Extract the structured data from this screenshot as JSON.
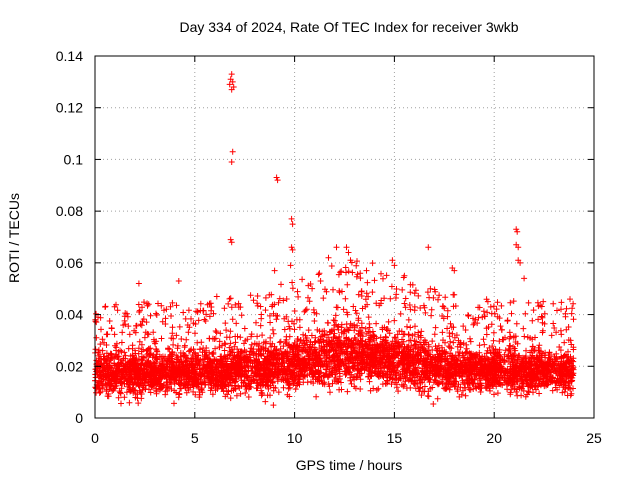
{
  "chart_data": {
    "type": "scatter",
    "title": "Day 334 of 2024, Rate Of TEC Index for receiver 3wkb",
    "xlabel": "GPS time / hours",
    "ylabel": "ROTI / TECUs",
    "xlim": [
      0,
      25
    ],
    "ylim": [
      0,
      0.14
    ],
    "x_ticks": [
      0,
      5,
      10,
      15,
      20,
      25
    ],
    "x_tick_labels": [
      "0",
      "5",
      "10",
      "15",
      "20",
      "25"
    ],
    "y_ticks": [
      0,
      0.02,
      0.04,
      0.06,
      0.08,
      0.1,
      0.12,
      0.14
    ],
    "y_tick_labels": [
      "0",
      "0.02",
      "0.04",
      "0.06",
      "0.08",
      "0.1",
      "0.12",
      "0.14"
    ],
    "grid": true,
    "marker": "+",
    "colors": {
      "points": "#ff0000",
      "grid": "#a0a0a0",
      "axes": "#000000"
    },
    "bulk_series": {
      "name": "ROTI",
      "x_range": [
        0,
        24
      ],
      "baseline_range": [
        0.005,
        0.03
      ],
      "typical_upper_envelope": 0.045,
      "note": "dense scatter of several thousand samples covering the full day"
    },
    "notable_points": [
      {
        "x": 6.85,
        "y": 0.133
      },
      {
        "x": 6.8,
        "y": 0.131
      },
      {
        "x": 6.9,
        "y": 0.13
      },
      {
        "x": 6.75,
        "y": 0.129
      },
      {
        "x": 6.95,
        "y": 0.128
      },
      {
        "x": 6.85,
        "y": 0.127
      },
      {
        "x": 6.9,
        "y": 0.103
      },
      {
        "x": 6.85,
        "y": 0.099
      },
      {
        "x": 6.8,
        "y": 0.069
      },
      {
        "x": 6.85,
        "y": 0.068
      },
      {
        "x": 9.1,
        "y": 0.093
      },
      {
        "x": 9.15,
        "y": 0.092
      },
      {
        "x": 9.85,
        "y": 0.077
      },
      {
        "x": 9.9,
        "y": 0.075
      },
      {
        "x": 9.85,
        "y": 0.066
      },
      {
        "x": 9.9,
        "y": 0.065
      },
      {
        "x": 9.8,
        "y": 0.059
      },
      {
        "x": 9.0,
        "y": 0.057
      },
      {
        "x": 12.1,
        "y": 0.066
      },
      {
        "x": 12.6,
        "y": 0.066
      },
      {
        "x": 12.7,
        "y": 0.064
      },
      {
        "x": 11.7,
        "y": 0.062
      },
      {
        "x": 12.8,
        "y": 0.061
      },
      {
        "x": 13.6,
        "y": 0.057
      },
      {
        "x": 14.9,
        "y": 0.061
      },
      {
        "x": 15.0,
        "y": 0.059
      },
      {
        "x": 16.7,
        "y": 0.066
      },
      {
        "x": 15.5,
        "y": 0.055
      },
      {
        "x": 17.9,
        "y": 0.058
      },
      {
        "x": 18.0,
        "y": 0.057
      },
      {
        "x": 21.1,
        "y": 0.073
      },
      {
        "x": 21.15,
        "y": 0.072
      },
      {
        "x": 21.1,
        "y": 0.067
      },
      {
        "x": 21.2,
        "y": 0.066
      },
      {
        "x": 21.2,
        "y": 0.061
      },
      {
        "x": 21.3,
        "y": 0.06
      },
      {
        "x": 21.5,
        "y": 0.054
      },
      {
        "x": 2.2,
        "y": 0.052
      },
      {
        "x": 4.2,
        "y": 0.053
      },
      {
        "x": 6.1,
        "y": 0.047
      },
      {
        "x": 0.15,
        "y": 0.039
      },
      {
        "x": 23.8,
        "y": 0.046
      }
    ]
  }
}
